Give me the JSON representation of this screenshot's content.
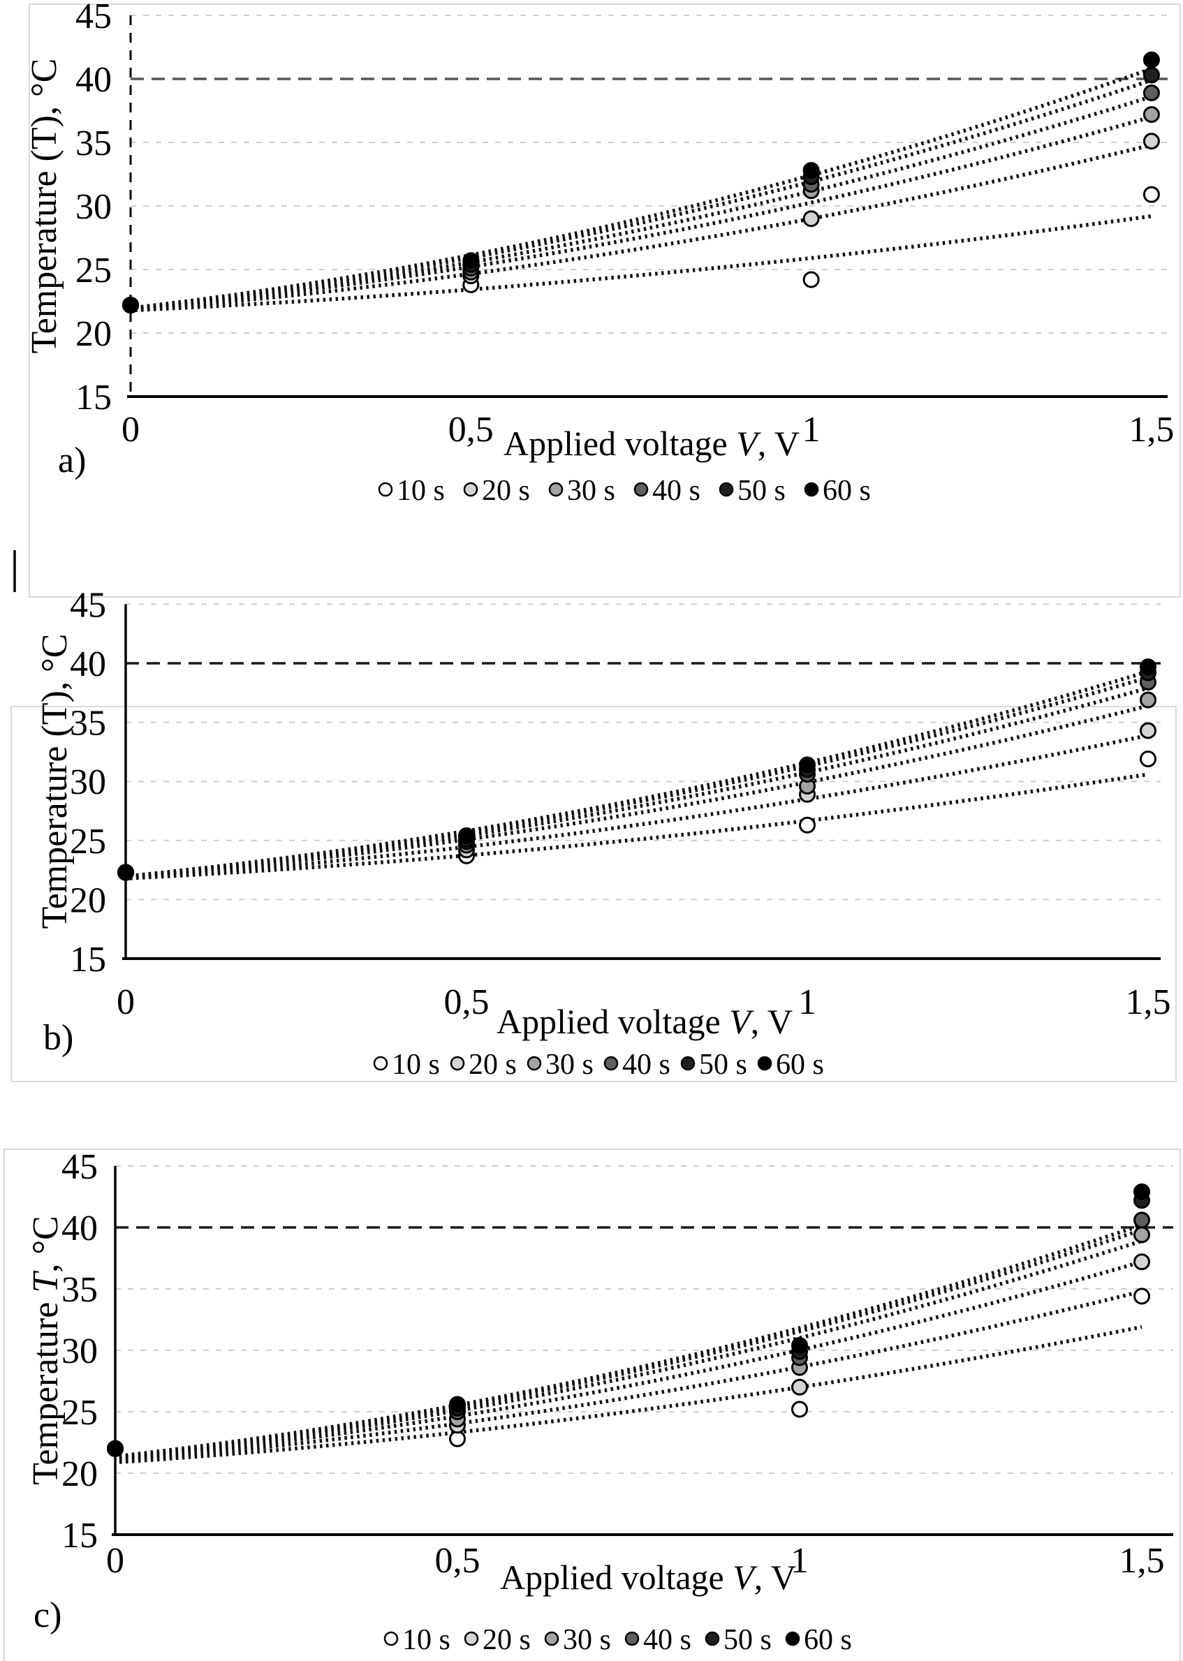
{
  "page": {
    "kind": "scientific-figure",
    "panels": [
      "a)",
      "b)",
      "c)"
    ]
  },
  "colors": {
    "background": "#ffffff",
    "panel_border": "#d9d9d9",
    "gridline": "#cfcfcf",
    "axis": "#000000",
    "marker_stroke": "#000000",
    "trend": "#111111"
  },
  "chart_data": [
    {
      "id": "a",
      "type": "scatter",
      "panel_label": "a)",
      "title": "",
      "xlabel": {
        "pre": "Applied voltage ",
        "italic": "V",
        "post": ", V"
      },
      "ylabel": {
        "pre": "Temperature (T), °C",
        "italic": "",
        "post": ""
      },
      "xlim": [
        0,
        1.5
      ],
      "ylim": [
        15,
        45
      ],
      "x_ticks": [
        {
          "v": 0,
          "label": "0"
        },
        {
          "v": 0.5,
          "label": "0,5"
        },
        {
          "v": 1,
          "label": "1"
        },
        {
          "v": 1.5,
          "label": "1,5"
        }
      ],
      "y_ticks": [
        {
          "v": 45,
          "label": "45"
        },
        {
          "v": 40,
          "label": "40"
        },
        {
          "v": 35,
          "label": "35"
        },
        {
          "v": 30,
          "label": "30"
        },
        {
          "v": 25,
          "label": "25"
        },
        {
          "v": 20,
          "label": "20"
        },
        {
          "v": 15,
          "label": "15"
        }
      ],
      "grid": "horizontal-dashed",
      "target_line_y": 40,
      "target_line_color": "#555555",
      "y_axis_style": "dashed",
      "legend_position": "bottom",
      "x": [
        0,
        0.5,
        1,
        1.5
      ],
      "series": [
        {
          "name": "10 s",
          "fill": "#ffffff",
          "y": [
            22.2,
            23.8,
            24.2,
            30.9
          ],
          "trend_start": 21.8,
          "trend_end": 29.2
        },
        {
          "name": "20 s",
          "fill": "#d4d4d4",
          "y": [
            22.2,
            24.5,
            29.0,
            35.1
          ],
          "trend_start": 21.8,
          "trend_end": 34.8
        },
        {
          "name": "30 s",
          "fill": "#a3a3a3",
          "y": [
            22.2,
            24.8,
            31.2,
            37.2
          ],
          "trend_start": 21.9,
          "trend_end": 37.0
        },
        {
          "name": "40 s",
          "fill": "#5f5f5f",
          "y": [
            22.2,
            25.1,
            31.7,
            38.9
          ],
          "trend_start": 21.9,
          "trend_end": 38.6
        },
        {
          "name": "50 s",
          "fill": "#1f1f1f",
          "y": [
            22.2,
            25.4,
            32.3,
            40.3
          ],
          "trend_start": 22.0,
          "trend_end": 39.9
        },
        {
          "name": "60 s",
          "fill": "#000000",
          "y": [
            22.2,
            25.7,
            32.8,
            41.5
          ],
          "trend_start": 22.0,
          "trend_end": 40.8
        }
      ]
    },
    {
      "id": "b",
      "type": "scatter",
      "panel_label": "b)",
      "title": "",
      "xlabel": {
        "pre": "Applied voltage ",
        "italic": "V",
        "post": ", V"
      },
      "ylabel": {
        "pre": "Temperature (T), °C",
        "italic": "",
        "post": ""
      },
      "xlim": [
        0,
        1.5
      ],
      "ylim": [
        15,
        45
      ],
      "x_ticks": [
        {
          "v": 0,
          "label": "0"
        },
        {
          "v": 0.5,
          "label": "0,5"
        },
        {
          "v": 1,
          "label": "1"
        },
        {
          "v": 1.5,
          "label": "1,5"
        }
      ],
      "y_ticks": [
        {
          "v": 45,
          "label": "45"
        },
        {
          "v": 40,
          "label": "40"
        },
        {
          "v": 35,
          "label": "35"
        },
        {
          "v": 30,
          "label": "30"
        },
        {
          "v": 25,
          "label": "25"
        },
        {
          "v": 20,
          "label": "20"
        },
        {
          "v": 15,
          "label": "15"
        }
      ],
      "grid": "horizontal-dashed",
      "target_line_y": 40,
      "target_line_color": "#1a1a1a",
      "y_axis_style": "solid",
      "legend_position": "bottom",
      "x": [
        0,
        0.5,
        1,
        1.5
      ],
      "series": [
        {
          "name": "10 s",
          "fill": "#ffffff",
          "y": [
            22.3,
            23.7,
            26.3,
            31.9
          ],
          "trend_start": 21.8,
          "trend_end": 30.6
        },
        {
          "name": "20 s",
          "fill": "#d4d4d4",
          "y": [
            22.3,
            24.2,
            28.9,
            34.3
          ],
          "trend_start": 21.8,
          "trend_end": 33.9
        },
        {
          "name": "30 s",
          "fill": "#a3a3a3",
          "y": [
            22.3,
            24.6,
            29.6,
            36.9
          ],
          "trend_start": 21.9,
          "trend_end": 36.4
        },
        {
          "name": "40 s",
          "fill": "#5f5f5f",
          "y": [
            22.3,
            24.9,
            30.6,
            38.4
          ],
          "trend_start": 21.9,
          "trend_end": 37.9
        },
        {
          "name": "50 s",
          "fill": "#1f1f1f",
          "y": [
            22.3,
            25.1,
            31.0,
            39.2
          ],
          "trend_start": 22.0,
          "trend_end": 38.8
        },
        {
          "name": "60 s",
          "fill": "#000000",
          "y": [
            22.3,
            25.4,
            31.4,
            39.7
          ],
          "trend_start": 22.0,
          "trend_end": 39.3
        }
      ]
    },
    {
      "id": "c",
      "type": "scatter",
      "panel_label": "c)",
      "title": "",
      "xlabel": {
        "pre": "Applied voltage ",
        "italic": "V",
        "post": ", V"
      },
      "ylabel": {
        "pre": "Temperature ",
        "italic": "T",
        "post": ", °C"
      },
      "xlim": [
        0,
        1.5
      ],
      "ylim": [
        15,
        45
      ],
      "x_ticks": [
        {
          "v": 0,
          "label": "0"
        },
        {
          "v": 0.5,
          "label": "0,5"
        },
        {
          "v": 1,
          "label": "1"
        },
        {
          "v": 1.5,
          "label": "1,5"
        }
      ],
      "y_ticks": [
        {
          "v": 45,
          "label": "45"
        },
        {
          "v": 40,
          "label": "40"
        },
        {
          "v": 35,
          "label": "35"
        },
        {
          "v": 30,
          "label": "30"
        },
        {
          "v": 25,
          "label": "25"
        },
        {
          "v": 20,
          "label": "20"
        },
        {
          "v": 15,
          "label": "15"
        }
      ],
      "grid": "horizontal-dashed",
      "target_line_y": 40,
      "target_line_color": "#1a1a1a",
      "y_axis_style": "solid",
      "legend_position": "bottom",
      "x": [
        0,
        0.5,
        1,
        1.5
      ],
      "series": [
        {
          "name": "10 s",
          "fill": "#ffffff",
          "y": [
            22.0,
            22.8,
            25.2,
            34.4
          ],
          "trend_start": 20.9,
          "trend_end": 31.9
        },
        {
          "name": "20 s",
          "fill": "#d4d4d4",
          "y": [
            22.0,
            23.9,
            27.0,
            37.2
          ],
          "trend_start": 21.0,
          "trend_end": 34.8
        },
        {
          "name": "30 s",
          "fill": "#a3a3a3",
          "y": [
            22.0,
            24.4,
            28.6,
            39.4
          ],
          "trend_start": 21.1,
          "trend_end": 37.2
        },
        {
          "name": "40 s",
          "fill": "#5f5f5f",
          "y": [
            22.0,
            25.0,
            29.4,
            40.6
          ],
          "trend_start": 21.2,
          "trend_end": 38.9
        },
        {
          "name": "50 s",
          "fill": "#1f1f1f",
          "y": [
            22.0,
            25.3,
            29.9,
            42.2
          ],
          "trend_start": 21.3,
          "trend_end": 39.8
        },
        {
          "name": "60 s",
          "fill": "#000000",
          "y": [
            22.0,
            25.6,
            30.4,
            42.9
          ],
          "trend_start": 21.4,
          "trend_end": 40.2
        }
      ]
    }
  ]
}
